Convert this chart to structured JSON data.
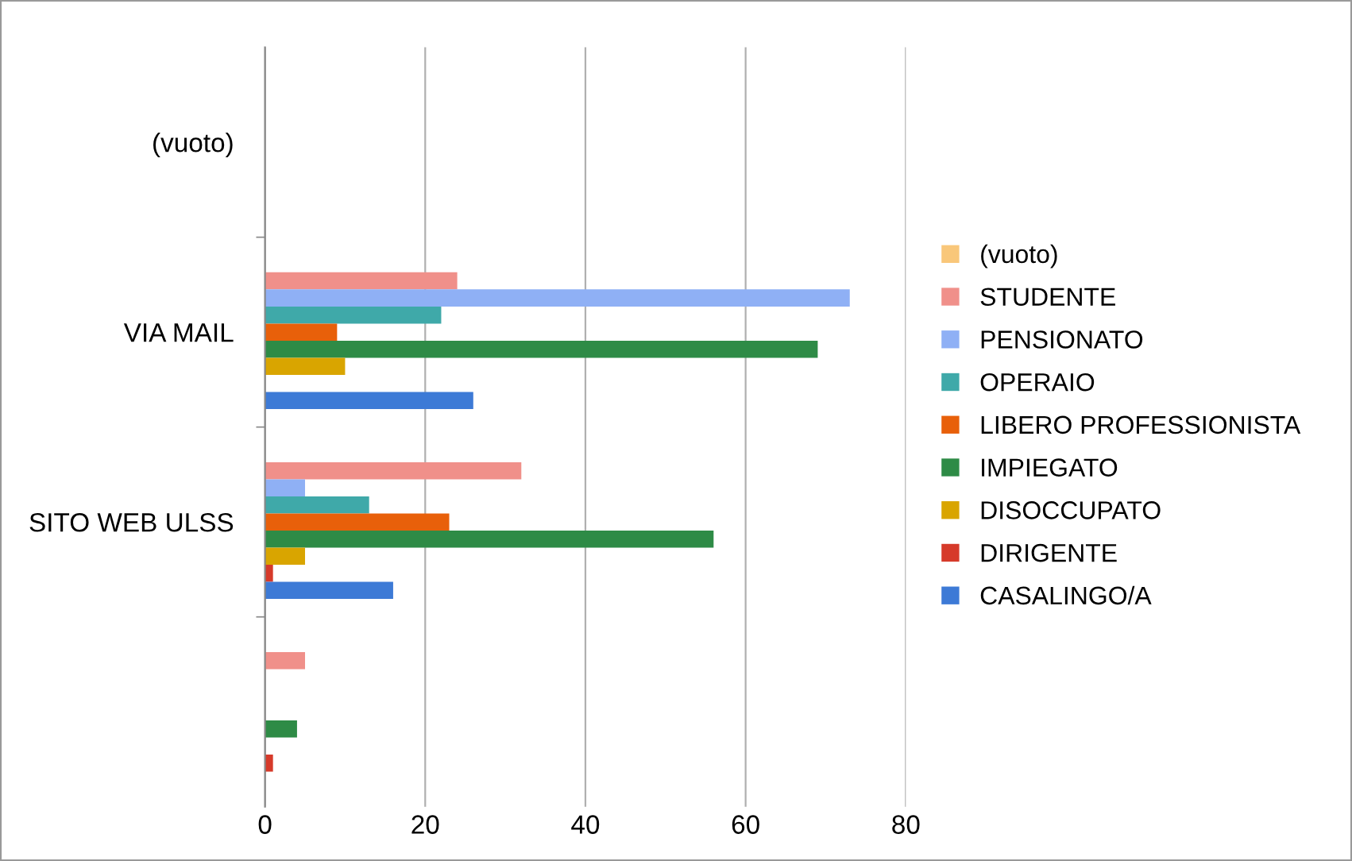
{
  "chart_data": {
    "type": "bar",
    "orientation": "horizontal",
    "categories": [
      "(vuoto)",
      "VIA MAIL",
      "SITO WEB ULSS",
      null
    ],
    "series": [
      {
        "name": "(vuoto)",
        "color": "#f9c77a",
        "values": [
          null,
          null,
          null,
          null
        ]
      },
      {
        "name": "STUDENTE",
        "color": "#f0908a",
        "values": [
          null,
          24,
          32,
          5
        ]
      },
      {
        "name": "PENSIONATO",
        "color": "#8fb0f5",
        "values": [
          null,
          73,
          5,
          null
        ]
      },
      {
        "name": "OPERAIO",
        "color": "#3fa9a9",
        "values": [
          null,
          22,
          13,
          null
        ]
      },
      {
        "name": "LIBERO PROFESSIONISTA",
        "color": "#e8600a",
        "values": [
          null,
          9,
          23,
          null
        ]
      },
      {
        "name": "IMPIEGATO",
        "color": "#2e8b46",
        "values": [
          null,
          69,
          56,
          4
        ]
      },
      {
        "name": "DISOCCUPATO",
        "color": "#d9a500",
        "values": [
          null,
          10,
          5,
          null
        ]
      },
      {
        "name": "DIRIGENTE",
        "color": "#d63a2a",
        "values": [
          null,
          null,
          1,
          1
        ]
      },
      {
        "name": "CASALINGO/A",
        "color": "#3d7ad6",
        "values": [
          null,
          26,
          16,
          null
        ]
      }
    ],
    "xlim": [
      0,
      80
    ],
    "xticks": [
      0,
      20,
      40,
      60,
      80
    ],
    "grid": "x",
    "legend": "right"
  }
}
